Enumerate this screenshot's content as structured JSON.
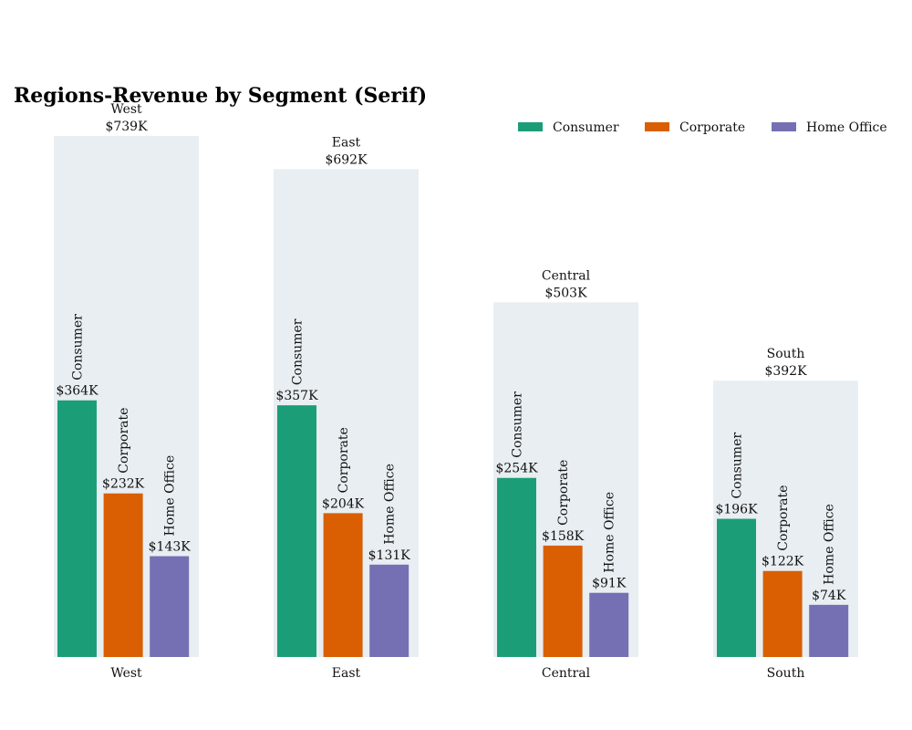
{
  "chart_data": {
    "type": "bar",
    "title": "Regions-Revenue by Segment (Serif)",
    "xlabel": "",
    "ylabel": "",
    "ylim": [
      0,
      739
    ],
    "grid": false,
    "legend_position": "top-right",
    "categories": [
      "West",
      "East",
      "Central",
      "South"
    ],
    "totals": [
      739,
      692,
      503,
      392
    ],
    "total_labels": [
      "$739K",
      "$692K",
      "$503K",
      "$392K"
    ],
    "series": [
      {
        "name": "Consumer",
        "color": "#1b9e77",
        "values": [
          364,
          357,
          254,
          196
        ],
        "labels": [
          "$364K",
          "$357K",
          "$254K",
          "$196K"
        ]
      },
      {
        "name": "Corporate",
        "color": "#d95f02",
        "values": [
          232,
          204,
          158,
          122
        ],
        "labels": [
          "$232K",
          "$204K",
          "$158K",
          "$122K"
        ]
      },
      {
        "name": "Home Office",
        "color": "#7570b3",
        "values": [
          143,
          131,
          91,
          74
        ],
        "labels": [
          "$143K",
          "$131K",
          "$91K",
          "$74K"
        ]
      }
    ],
    "background_color": "#e8eef2"
  }
}
